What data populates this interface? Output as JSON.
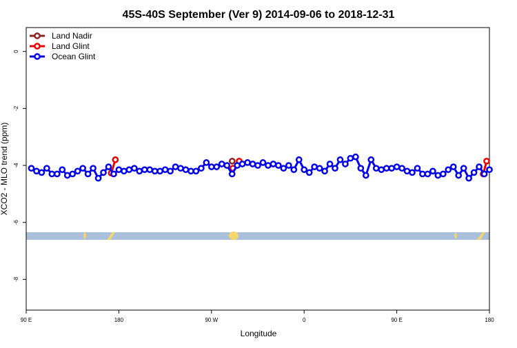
{
  "chart_data": {
    "type": "line",
    "title": "45S-40S September (Ver 9)   2014-09-06 to 2018-12-31",
    "x_label": "Longitude",
    "y_label": "XCO2 - MLO trend (ppm)",
    "xlim": [
      90,
      540
    ],
    "ylim": [
      -9.08,
      0.84
    ],
    "xticks": [
      {
        "value": 90,
        "label": "90 E"
      },
      {
        "value": 180,
        "label": "180"
      },
      {
        "value": 270,
        "label": "90 W"
      },
      {
        "value": 360,
        "label": "0"
      },
      {
        "value": 450,
        "label": "90 E"
      },
      {
        "value": 540,
        "label": "180"
      }
    ],
    "yticks": [
      0,
      -2,
      -4,
      -6,
      -8
    ],
    "legend": "top-left",
    "series": [
      {
        "name": "Land Nadir",
        "color": "#8b2323",
        "x": [
          290.1
        ],
        "values": [
          -3.85
        ]
      },
      {
        "name": "Land Glint",
        "color": "#ee0000",
        "x": [
          172.6,
          176.6,
          null,
          290.8,
          296.9,
          null,
          534,
          537.3
        ],
        "values": [
          -4.27,
          -3.8,
          null,
          -4.1,
          -3.85,
          null,
          -4.3,
          -3.85
        ]
      },
      {
        "name": "Ocean Glint",
        "color": "#0000ee",
        "x": [
          95,
          100,
          105,
          110,
          115,
          120,
          125,
          130,
          135,
          140,
          145,
          150,
          155,
          160,
          165,
          170,
          175,
          180,
          185,
          190,
          195,
          200,
          205,
          210,
          215,
          220,
          225,
          230,
          235,
          240,
          245,
          250,
          255,
          260,
          265,
          270,
          275,
          280,
          285,
          290,
          295,
          300,
          305,
          310,
          315,
          320,
          325,
          330,
          335,
          340,
          345,
          350,
          355,
          360,
          365,
          370,
          375,
          380,
          385,
          390,
          395,
          400,
          405,
          410,
          415,
          420,
          425,
          430,
          435,
          440,
          445,
          450,
          455,
          460,
          465,
          470,
          475,
          480,
          485,
          490,
          495,
          500,
          505,
          510,
          515,
          520,
          525,
          530,
          535,
          540
        ],
        "values": [
          -4.1,
          -4.2,
          -4.25,
          -4.1,
          -4.3,
          -4.3,
          -4.15,
          -4.35,
          -4.3,
          -4.2,
          -4.1,
          -4.3,
          -4.1,
          -4.45,
          -4.25,
          -4.05,
          -4.3,
          -4.15,
          -4.2,
          -4.15,
          -4.1,
          -4.2,
          -4.15,
          -4.15,
          -4.2,
          -4.2,
          -4.15,
          -4.2,
          -4.05,
          -4.1,
          -4.15,
          -4.2,
          -4.2,
          -4.1,
          -3.9,
          -4.05,
          -4.05,
          -3.95,
          -4.0,
          -4.3,
          -4.0,
          -3.95,
          -3.9,
          -3.95,
          -4.0,
          -3.9,
          -4.0,
          -3.95,
          -4.0,
          -4.1,
          -4.0,
          -4.15,
          -3.8,
          -4.15,
          -4.25,
          -4.05,
          -4.1,
          -4.2,
          -3.95,
          -4.1,
          -3.8,
          -3.95,
          -3.75,
          -3.7,
          -4.1,
          -4.35,
          -3.8,
          -4.1,
          -4.15,
          -4.1,
          -4.1,
          -4.05,
          -4.1,
          -4.2,
          -4.25,
          -4.1,
          -4.3,
          -4.3,
          -4.2,
          -4.35,
          -4.3,
          -4.15,
          -4.05,
          -4.35,
          -4.1,
          -4.45,
          -4.25,
          -4.05,
          -4.3,
          -4.15
        ]
      }
    ]
  }
}
